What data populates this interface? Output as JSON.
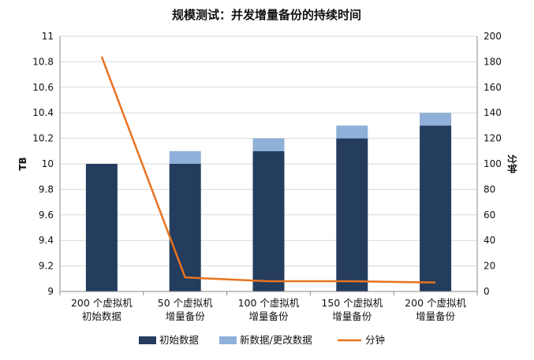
{
  "chart_data": {
    "type": "bar",
    "title": "规模测试：并发增量备份的持续时间",
    "categories": [
      [
        "200 个虚拟机",
        "初始数据"
      ],
      [
        "50 个虚拟机",
        "增量备份"
      ],
      [
        "100 个虚拟机",
        "增量备份"
      ],
      [
        "150 个虚拟机",
        "增量备份"
      ],
      [
        "200 个虚拟机",
        "增量备份"
      ]
    ],
    "series": [
      {
        "name": "初始数据",
        "kind": "stacked-bar",
        "axis": "left",
        "color": "#243c5e",
        "values": [
          10.0,
          10.0,
          10.1,
          10.2,
          10.3
        ]
      },
      {
        "name": "新数据/更改数据",
        "kind": "stacked-bar",
        "axis": "left",
        "color": "#8fb0d8",
        "values": [
          0.0,
          0.1,
          0.1,
          0.1,
          0.1
        ]
      },
      {
        "name": "分钟",
        "kind": "line",
        "axis": "right",
        "color": "#e8731f",
        "values": [
          184,
          11,
          8,
          8,
          7
        ]
      }
    ],
    "ylabel": "TB",
    "y2label": "分钟",
    "ylim": [
      9,
      11
    ],
    "y2lim": [
      0,
      200
    ],
    "yticks": [
      "11",
      "10.8",
      "10.6",
      "10.4",
      "10.2",
      "10",
      "9.8",
      "9.6",
      "9.4",
      "9.2",
      "9"
    ],
    "y2ticks": [
      "200",
      "180",
      "160",
      "140",
      "120",
      "100",
      "80",
      "60",
      "40",
      "20",
      "0"
    ],
    "grid": true,
    "legend_position": "bottom"
  }
}
